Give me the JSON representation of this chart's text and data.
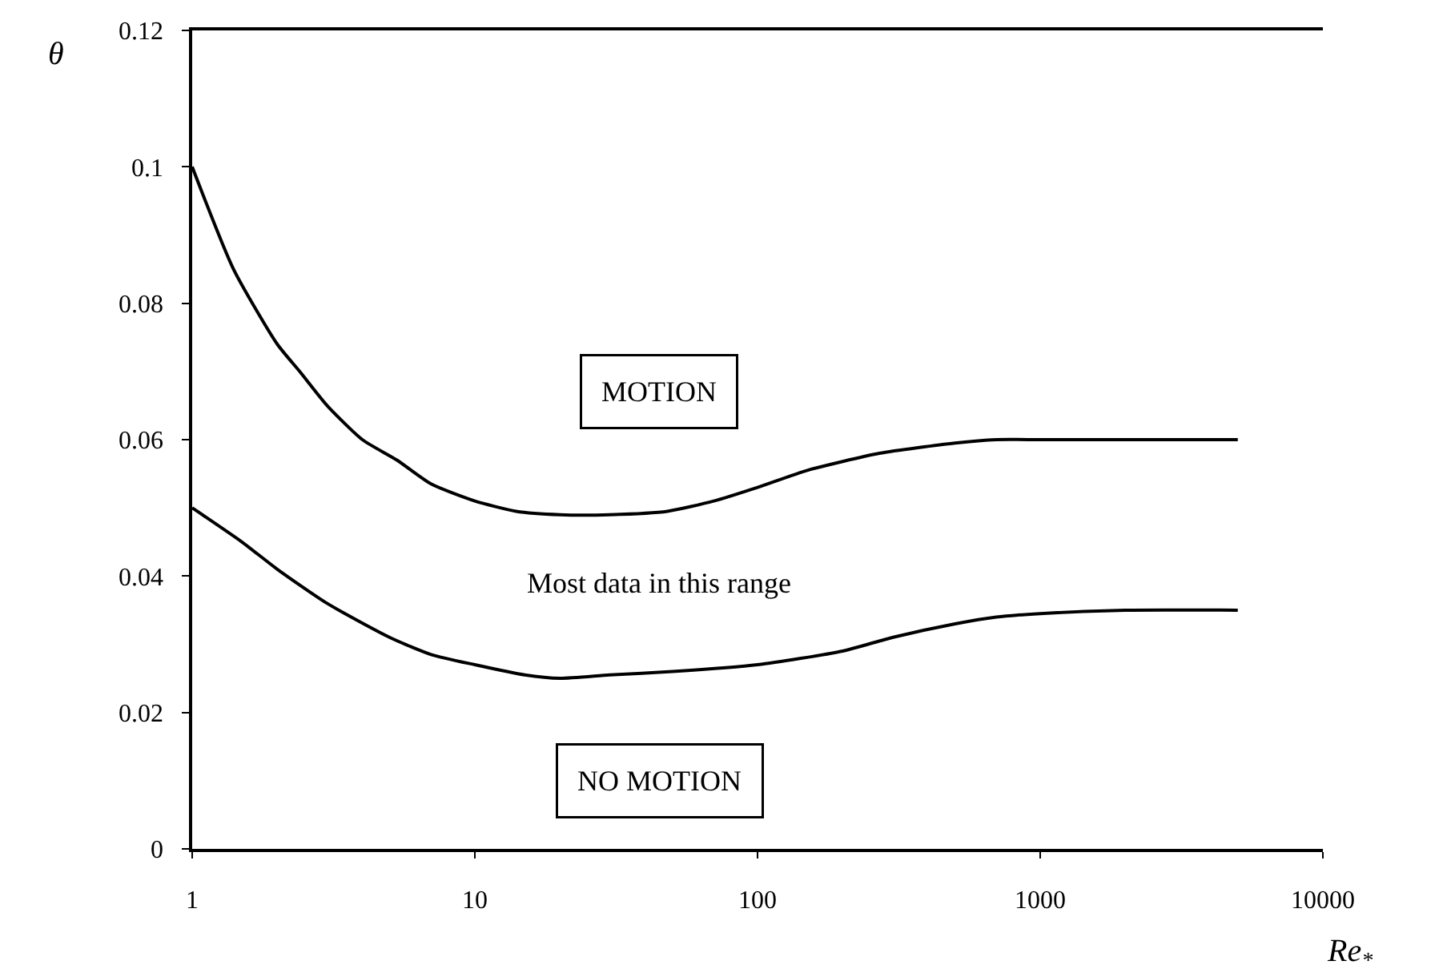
{
  "chart_data": {
    "type": "line",
    "xlabel": "Re$_{*}$",
    "ylabel": "θ",
    "log": "x",
    "marker": "none",
    "line_style": "solid",
    "xlim": [
      1,
      10000
    ],
    "xticks": [
      1,
      10,
      100,
      1000,
      10000
    ],
    "ylim": [
      0,
      0.12
    ],
    "yticks": [
      0,
      0.02,
      0.04,
      0.06,
      0.08,
      0.1,
      0.12
    ],
    "series": [
      {
        "color": "#000000",
        "x": [
          1,
          1.4,
          2,
          2.4,
          3,
          4,
          5.3,
          7,
          10,
          14,
          20,
          30,
          48,
          70,
          100,
          150,
          270,
          500,
          700,
          1000,
          2000,
          5000
        ],
        "values": [
          0.1,
          0.085,
          0.074,
          0.07,
          0.065,
          0.06,
          0.057,
          0.0535,
          0.051,
          0.0495,
          0.049,
          0.049,
          0.0495,
          0.051,
          0.053,
          0.0555,
          0.058,
          0.0595,
          0.06,
          0.06,
          0.06,
          0.06
        ]
      },
      {
        "color": "#000000",
        "x": [
          1,
          1.5,
          2,
          3,
          5,
          7,
          10,
          15,
          20,
          30,
          50,
          100,
          200,
          300,
          500,
          700,
          1000,
          2000,
          5000
        ],
        "values": [
          0.05,
          0.045,
          0.041,
          0.036,
          0.031,
          0.0285,
          0.027,
          0.0255,
          0.025,
          0.0255,
          0.026,
          0.027,
          0.029,
          0.031,
          0.033,
          0.034,
          0.0345,
          0.035,
          0.035
        ]
      }
    ],
    "annotations": [
      "MOTION",
      "Most data in this range",
      "NO MOTION"
    ]
  }
}
